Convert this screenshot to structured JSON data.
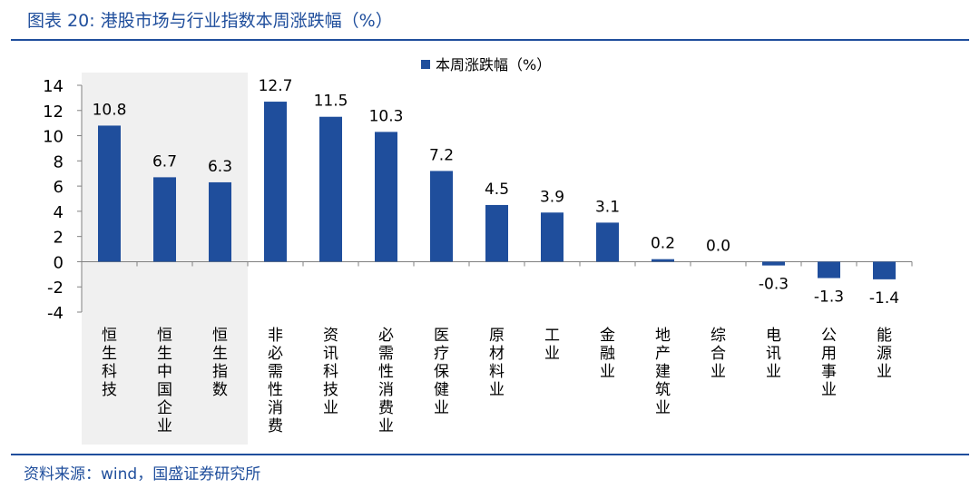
{
  "header": {
    "figure_title": "图表 20:  港股市场与行业指数本周涨跌幅（%）"
  },
  "footer": {
    "source": "资料来源：wind，国盛证券研究所"
  },
  "colors": {
    "bar": "#1f4e9c",
    "brand": "#1f4e9c",
    "highlight_band": "#f0f0f0",
    "axis": "#808080",
    "text": "#000000"
  },
  "chart_data": {
    "type": "bar",
    "title": "",
    "legend": {
      "label": "本周涨跌幅（%）",
      "placement": "top-center"
    },
    "categories": [
      "恒生科技",
      "恒生中国企业",
      "恒生指数",
      "非必需性消费",
      "资讯科技业",
      "必需性消费业",
      "医疗保健业",
      "原材料业",
      "工业",
      "金融业",
      "地产建筑业",
      "综合业",
      "电讯业",
      "公用事业",
      "能源业"
    ],
    "series": [
      {
        "name": "本周涨跌幅（%）",
        "values": [
          10.8,
          6.7,
          6.3,
          12.7,
          11.5,
          10.3,
          7.2,
          4.5,
          3.9,
          3.1,
          0.2,
          0.0,
          -0.3,
          -1.3,
          -1.4
        ]
      }
    ],
    "data_labels": [
      "10.8",
      "6.7",
      "6.3",
      "12.7",
      "11.5",
      "10.3",
      "7.2",
      "4.5",
      "3.9",
      "3.1",
      "0.2",
      "0.0",
      "-0.3",
      "-1.3",
      "-1.4"
    ],
    "y_ticks": [
      "14",
      "12",
      "10",
      "8",
      "6",
      "4",
      "2",
      "0",
      "-2",
      "-4"
    ],
    "ylim": [
      -4,
      14
    ],
    "highlighted_categories": [
      "恒生科技",
      "恒生中国企业",
      "恒生指数"
    ],
    "xlabel": "",
    "ylabel": "",
    "grid": false
  }
}
